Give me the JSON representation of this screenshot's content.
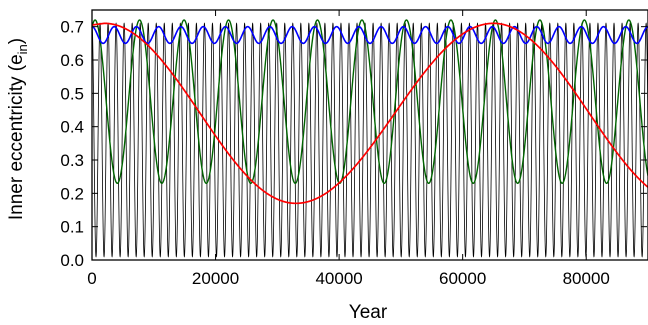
{
  "chart_data": {
    "type": "line",
    "xlabel": "Year",
    "ylabel": "Inner eccentricity (e",
    "ylabel_subscript": "in",
    "ylabel_close": ")",
    "xlim": [
      0,
      90000
    ],
    "ylim": [
      0.0,
      0.75
    ],
    "xticks": [
      0,
      20000,
      40000,
      60000,
      80000
    ],
    "xtick_labels": [
      "0",
      "20000",
      "40000",
      "60000",
      "80000"
    ],
    "yticks": [
      0.0,
      0.1,
      0.2,
      0.3,
      0.4,
      0.5,
      0.6,
      0.7
    ],
    "ytick_labels": [
      "0.0",
      "0.1",
      "0.2",
      "0.3",
      "0.4",
      "0.5",
      "0.6",
      "0.7"
    ],
    "grid": false,
    "legend": false,
    "series": [
      {
        "color": "#000000",
        "shape": "periodic oscillation",
        "period_years": 1300,
        "max": 0.71,
        "min": 0.01,
        "start": 0.71
      },
      {
        "color": "#006400",
        "shape": "periodic oscillation",
        "period_years": 7200,
        "max": 0.72,
        "min": 0.23,
        "start": 0.6,
        "first_peak_year": 500
      },
      {
        "color": "#0000ff",
        "shape": "periodic oscillation",
        "period_years": 3600,
        "max": 0.7,
        "min": 0.65,
        "start": 0.7
      },
      {
        "color": "#ff0000",
        "shape": "slow oscillation",
        "period_years": 63000,
        "max": 0.71,
        "min": 0.17,
        "first_peak_year": 2000,
        "min_year": 33000,
        "second_peak_year": 65000,
        "end_value": 0.22
      }
    ]
  }
}
